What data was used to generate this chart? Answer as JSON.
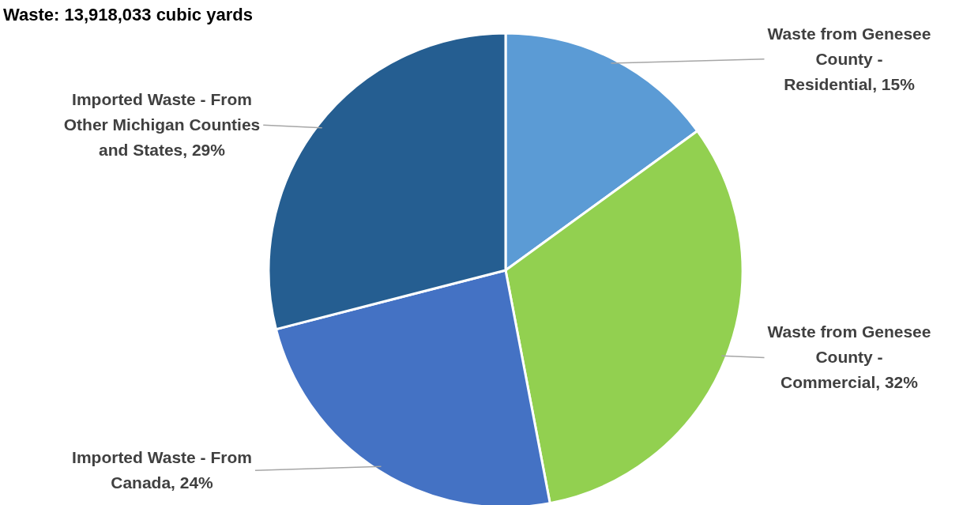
{
  "chart_data": {
    "type": "pie",
    "title": "Waste: 13,918,033 cubic yards",
    "categories": [
      "Waste from Genesee County - Residential",
      "Waste from Genesee County - Commercial",
      "Imported Waste - From Canada",
      "Imported Waste - From Other Michigan Counties and States"
    ],
    "values": [
      15,
      32,
      24,
      29
    ],
    "value_labels": [
      "15%",
      "32%",
      "24%",
      "29%"
    ],
    "colors": [
      "#5b9bd5",
      "#92d050",
      "#4472c4",
      "#255e91"
    ]
  }
}
